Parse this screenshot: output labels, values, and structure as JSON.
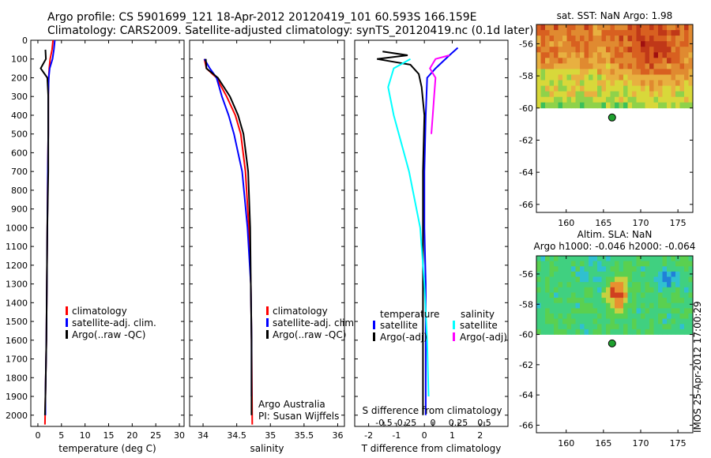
{
  "header": {
    "line1": "Argo profile: CS 5901699_121 18-Apr-2012 20120419_101 60.593S 166.159E",
    "line2": "Climatology: CARS2009. Satellite-adjusted climatology: synTS_20120419.nc (0.1d later)"
  },
  "colors": {
    "climatology": "#ff0000",
    "satellite": "#0000ff",
    "argo": "#000000",
    "sat_salinity": "#00ffff",
    "argo_salinity": "#ff00ff"
  },
  "chart_data": [
    {
      "type": "line",
      "xlabel": "temperature (deg C)",
      "xlim": [
        -1.5,
        31
      ],
      "xticks": [
        0,
        5,
        10,
        15,
        20,
        25,
        30
      ],
      "ylim": [
        0,
        2060
      ],
      "yticks": [
        0,
        100,
        200,
        300,
        400,
        500,
        600,
        700,
        800,
        900,
        1000,
        1100,
        1200,
        1300,
        1400,
        1500,
        1600,
        1700,
        1800,
        1900,
        2000
      ],
      "legend": [
        "climatology",
        "satellite-adj. clim.",
        "Argo(..raw -QC)"
      ],
      "series": [
        {
          "name": "climatology",
          "color": "#ff0000",
          "points": [
            [
              3.2,
              0
            ],
            [
              3.0,
              50
            ],
            [
              2.6,
              100
            ],
            [
              2.4,
              150
            ],
            [
              2.3,
              200
            ],
            [
              2.2,
              300
            ],
            [
              2.2,
              500
            ],
            [
              2.1,
              700
            ],
            [
              2.0,
              1000
            ],
            [
              1.9,
              1300
            ],
            [
              1.8,
              1600
            ],
            [
              1.6,
              1900
            ],
            [
              1.5,
              2050
            ]
          ]
        },
        {
          "name": "satellite-adj. clim.",
          "color": "#0000ff",
          "points": [
            [
              3.6,
              0
            ],
            [
              3.4,
              50
            ],
            [
              3.1,
              100
            ],
            [
              2.5,
              150
            ],
            [
              2.3,
              200
            ],
            [
              2.2,
              300
            ],
            [
              2.2,
              500
            ],
            [
              2.1,
              700
            ],
            [
              2.0,
              1000
            ],
            [
              1.9,
              1300
            ],
            [
              1.8,
              1600
            ],
            [
              1.6,
              1900
            ],
            [
              1.6,
              2000
            ]
          ]
        },
        {
          "name": "Argo(..raw -QC)",
          "color": "#000000",
          "points": [
            [
              1.6,
              50
            ],
            [
              1.7,
              100
            ],
            [
              0.6,
              150
            ],
            [
              2.0,
              200
            ],
            [
              2.2,
              300
            ],
            [
              2.2,
              500
            ],
            [
              2.2,
              700
            ],
            [
              2.0,
              1000
            ],
            [
              1.9,
              1300
            ],
            [
              1.8,
              1600
            ],
            [
              1.6,
              1900
            ],
            [
              1.5,
              2000
            ]
          ]
        }
      ]
    },
    {
      "type": "line",
      "xlabel": "salinity",
      "xlim": [
        33.8,
        36.1
      ],
      "xticks": [
        34,
        34.5,
        35,
        35.5,
        36
      ],
      "ylim": [
        0,
        2060
      ],
      "legend": [
        "climatology",
        "satellite-adj. clim.",
        "Argo(..raw -QC)"
      ],
      "annotations": [
        "Argo Australia",
        "PI: Susan Wijffels"
      ],
      "series": [
        {
          "name": "climatology",
          "color": "#ff0000",
          "points": [
            [
              34.02,
              100
            ],
            [
              34.05,
              150
            ],
            [
              34.2,
              200
            ],
            [
              34.35,
              300
            ],
            [
              34.48,
              400
            ],
            [
              34.56,
              500
            ],
            [
              34.63,
              700
            ],
            [
              34.68,
              1000
            ],
            [
              34.71,
              1300
            ],
            [
              34.72,
              1600
            ],
            [
              34.73,
              2050
            ]
          ]
        },
        {
          "name": "satellite-adj. clim.",
          "color": "#0000ff",
          "points": [
            [
              34.02,
              100
            ],
            [
              34.1,
              150
            ],
            [
              34.2,
              200
            ],
            [
              34.28,
              300
            ],
            [
              34.38,
              400
            ],
            [
              34.46,
              500
            ],
            [
              34.58,
              700
            ],
            [
              34.66,
              1000
            ],
            [
              34.71,
              1300
            ],
            [
              34.72,
              1600
            ],
            [
              34.72,
              1900
            ]
          ]
        },
        {
          "name": "Argo(..raw -QC)",
          "color": "#000000",
          "points": [
            [
              34.04,
              100
            ],
            [
              34.05,
              150
            ],
            [
              34.22,
              200
            ],
            [
              34.4,
              300
            ],
            [
              34.52,
              400
            ],
            [
              34.6,
              500
            ],
            [
              34.67,
              700
            ],
            [
              34.7,
              1000
            ],
            [
              34.71,
              1300
            ],
            [
              34.72,
              1600
            ],
            [
              34.72,
              2000
            ]
          ]
        }
      ]
    },
    {
      "type": "line",
      "xlabel": "T difference from climatology",
      "x2label": "S difference from climatology",
      "xlim": [
        -2.5,
        3
      ],
      "xticks": [
        -2,
        -1,
        0,
        1,
        2
      ],
      "x2ticks": [
        "-0.5",
        "-0.25",
        "0",
        "0.25",
        "0.5"
      ],
      "ylim": [
        0,
        2060
      ],
      "legend": {
        "temperature": [
          "satellite",
          "Argo(-adj)"
        ],
        "salinity": [
          "satellite",
          "Argo(-adj)"
        ]
      },
      "legend_titles": [
        "temperature",
        "salinity"
      ],
      "series": [
        {
          "name": "temperature satellite",
          "color": "#0000ff",
          "points": [
            [
              1.2,
              40
            ],
            [
              0.9,
              80
            ],
            [
              0.4,
              150
            ],
            [
              0.1,
              200
            ],
            [
              0.05,
              400
            ],
            [
              0.0,
              700
            ],
            [
              0.0,
              1000
            ],
            [
              0.05,
              1300
            ],
            [
              0.05,
              1600
            ],
            [
              0.05,
              2000
            ]
          ]
        },
        {
          "name": "temperature Argo(-adj)",
          "color": "#000000",
          "points": [
            [
              -1.5,
              60
            ],
            [
              -0.6,
              80
            ],
            [
              -1.7,
              100
            ],
            [
              -0.5,
              130
            ],
            [
              -0.2,
              180
            ],
            [
              -0.1,
              250
            ],
            [
              0.0,
              400
            ],
            [
              -0.05,
              700
            ],
            [
              -0.05,
              1000
            ],
            [
              -0.05,
              1300
            ],
            [
              -0.05,
              1600
            ],
            [
              -0.05,
              2000
            ]
          ]
        },
        {
          "name": "salinity satellite",
          "color": "#00ffff",
          "points": [
            [
              -0.5,
              100
            ],
            [
              -1.1,
              150
            ],
            [
              -1.3,
              250
            ],
            [
              -1.1,
              400
            ],
            [
              -0.55,
              700
            ],
            [
              -0.15,
              1000
            ],
            [
              0.0,
              1300
            ],
            [
              0.1,
              1600
            ],
            [
              0.15,
              1900
            ]
          ]
        },
        {
          "name": "salinity Argo(-adj)",
          "color": "#ff00ff",
          "points": [
            [
              0.9,
              80
            ],
            [
              0.4,
              100
            ],
            [
              0.2,
              150
            ],
            [
              0.4,
              200
            ],
            [
              0.35,
              300
            ],
            [
              0.3,
              400
            ],
            [
              0.25,
              500
            ]
          ]
        }
      ]
    },
    {
      "type": "heatmap",
      "title": "sat. SST: NaN Argo: 1.98",
      "xlim": [
        156,
        177
      ],
      "ylim": [
        -66.5,
        -54.8
      ],
      "xticks": [
        160,
        165,
        170,
        175
      ],
      "yticks": [
        -56,
        -58,
        -60,
        -62,
        -64,
        -66
      ],
      "argo_position": [
        166.16,
        -60.59
      ]
    },
    {
      "type": "heatmap",
      "title": "Altim. SLA: NaN",
      "subtitle": "Argo h1000: -0.046 h2000: -0.064",
      "xlim": [
        156,
        177
      ],
      "ylim": [
        -66.5,
        -54.8
      ],
      "xticks": [
        160,
        165,
        170,
        175
      ],
      "yticks": [
        -56,
        -58,
        -60,
        -62,
        -64,
        -66
      ],
      "argo_position": [
        166.16,
        -60.59
      ]
    }
  ],
  "footer": {
    "stamp": "IMOS 25-Apr-2012 17:00:29"
  }
}
